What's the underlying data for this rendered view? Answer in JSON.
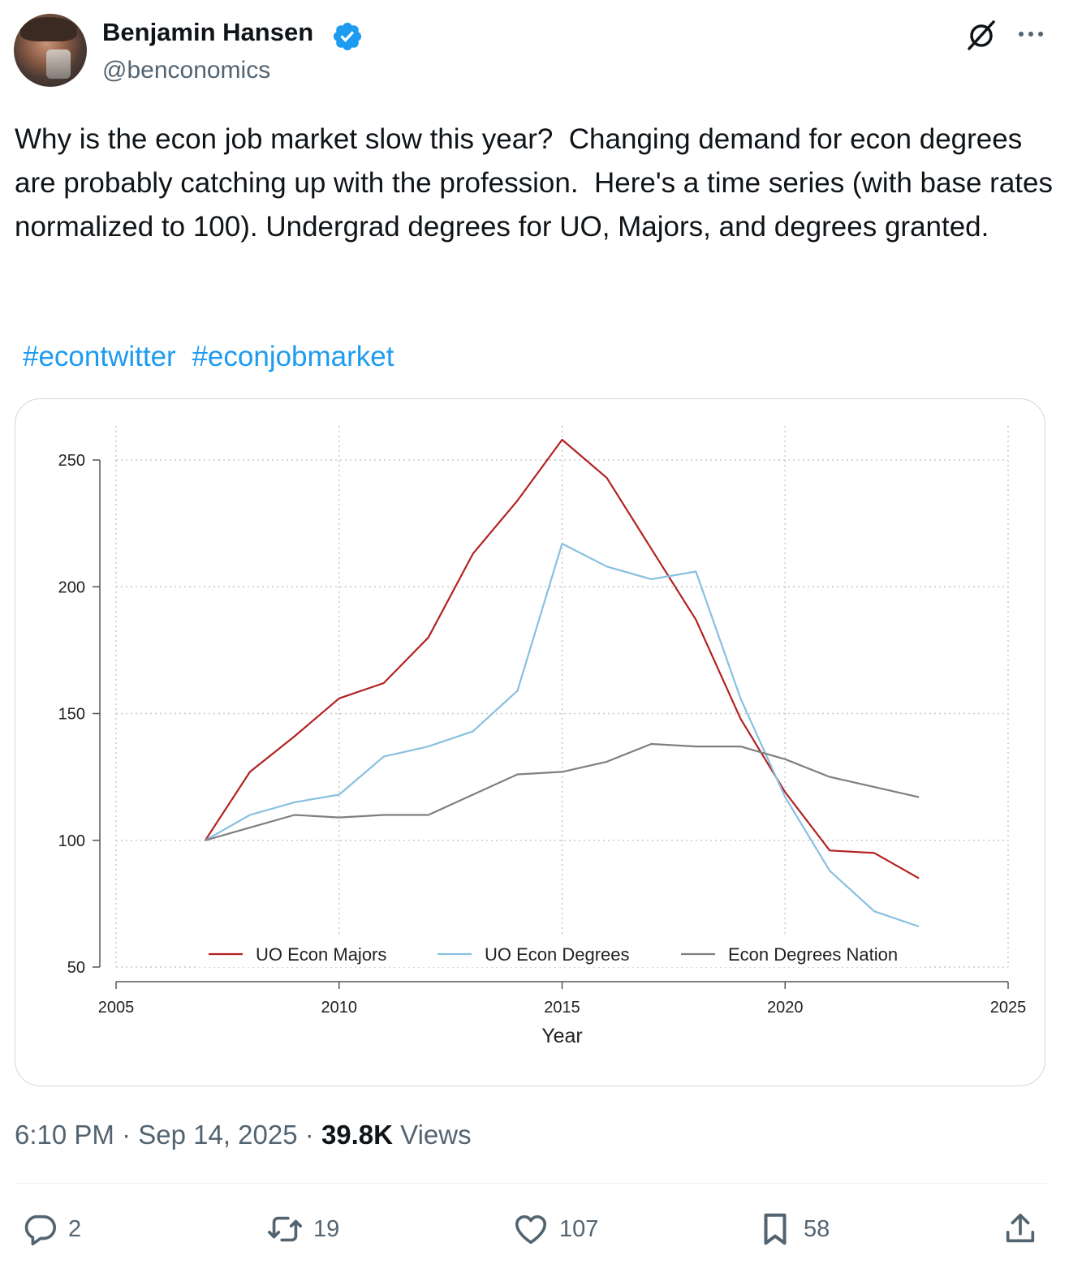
{
  "author": {
    "name": "Benjamin Hansen",
    "handle": "@benconomics",
    "verified_icon": "verified-badge-icon",
    "badge_color": "#1d9bf0"
  },
  "tweet": {
    "text": "Why is the econ job market slow this year?  Changing demand for econ degrees are probably catching up with the profession.  Here's a time series (with base rates normalized to 100). Undergrad degrees for UO, Majors, and degrees granted.",
    "hashtags": [
      "#econtwitter",
      "#econjobmarket"
    ]
  },
  "meta": {
    "time": "6:10 PM",
    "date": "Sep 14, 2025",
    "views_count": "39.8K",
    "views_label": "Views"
  },
  "actions": {
    "replies": "2",
    "reposts": "19",
    "likes": "107",
    "bookmarks": "58"
  },
  "chart_data": {
    "type": "line",
    "xlabel": "Year",
    "ylabel": "",
    "xlim": [
      2005,
      2025
    ],
    "ylim": [
      50,
      250
    ],
    "xticks": [
      2005,
      2010,
      2015,
      2020,
      2025
    ],
    "yticks": [
      50,
      100,
      150,
      200,
      250
    ],
    "grid": true,
    "legend_position": "bottom-inside",
    "x": [
      2007,
      2008,
      2009,
      2010,
      2011,
      2012,
      2013,
      2014,
      2015,
      2016,
      2017,
      2018,
      2019,
      2020,
      2021,
      2022,
      2023
    ],
    "series": [
      {
        "name": "UO Econ Majors",
        "color": "#b22222",
        "values": [
          100,
          127,
          141,
          156,
          162,
          180,
          213,
          234,
          258,
          243,
          215,
          187,
          148,
          119,
          96,
          95,
          85
        ]
      },
      {
        "name": "UO Econ Degrees",
        "color": "#88c0e0",
        "values": [
          100,
          110,
          115,
          118,
          133,
          137,
          143,
          159,
          217,
          208,
          203,
          206,
          156,
          117,
          88,
          72,
          66
        ]
      },
      {
        "name": "Econ Degrees Nation",
        "color": "#7f7f7f",
        "values": [
          100,
          105,
          110,
          109,
          110,
          110,
          118,
          126,
          127,
          131,
          138,
          137,
          137,
          132,
          125,
          121,
          117
        ]
      }
    ]
  }
}
